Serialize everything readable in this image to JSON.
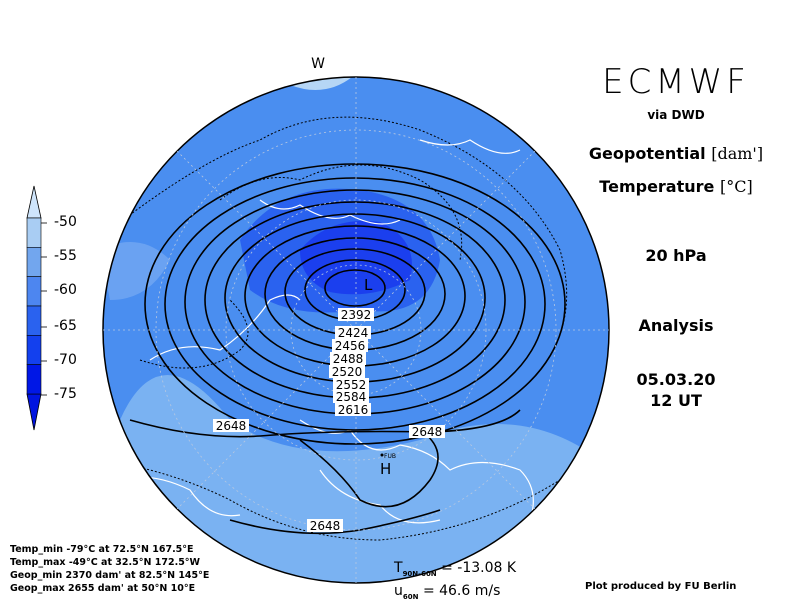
{
  "header": {
    "brand": "ECMWF",
    "source": "via DWD",
    "field1_name": "Geopotential",
    "field1_unit": "[dam']",
    "field2_name": "Temperature",
    "field2_unit": "[°C]",
    "level": "20 hPa",
    "product": "Analysis",
    "date": "05.03.20",
    "time": "12 UT"
  },
  "colorbar": {
    "labels": [
      "-50",
      "-55",
      "-60",
      "-65",
      "-70",
      "-75"
    ],
    "colors": [
      "#a9cdf3",
      "#72a6ee",
      "#4d86f0",
      "#2a62ef",
      "#1340ee",
      "#0017e6"
    ]
  },
  "map": {
    "contour_labels": [
      "2392",
      "2424",
      "2456",
      "2488",
      "2520",
      "2552",
      "2584",
      "2616",
      "2648",
      "2648",
      "2648"
    ],
    "low_marker": "L",
    "high_marker": "H",
    "station_marker": "FUB",
    "edge_marker": "W",
    "colors": {
      "ocean_fill": "#4a8ef0",
      "land_fill": "#7ab2f2",
      "cold_core": "#1b3fee",
      "contour": "#000000",
      "coast": "#ffffff"
    }
  },
  "stats": {
    "temp_min": "Temp_min -79°C at 72.5°N 167.5°E",
    "temp_max": "Temp_max -49°C at 32.5°N 172.5°W",
    "geop_min": "Geop_min 2370 dam' at 82.5°N 145°E",
    "geop_max": "Geop_max 2655 dam' at 50°N 10°E"
  },
  "indices": {
    "t_label": "T",
    "t_sub": "90N-60N",
    "t_value": "= -13.08 K",
    "u_label": "u",
    "u_sub": "60N",
    "u_value": "= 46.6 m/s"
  },
  "credit": "Plot produced by FU Berlin"
}
